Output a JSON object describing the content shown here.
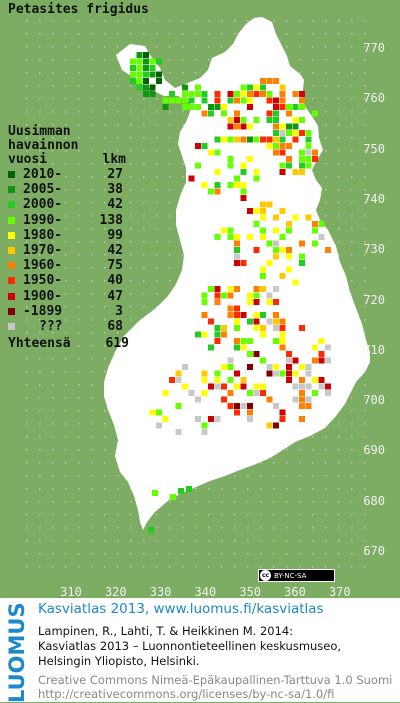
{
  "species": "Petasites frigidus",
  "legend": {
    "header_line1": "Uusimman",
    "header_line2": "havainnon",
    "header_col1": "vuosi",
    "header_col2": "lkm",
    "rows": [
      {
        "label": "2010-",
        "count": "27",
        "color": "#006400"
      },
      {
        "label": "2005-",
        "count": "38",
        "color": "#119611"
      },
      {
        "label": "2000-",
        "count": "42",
        "color": "#22cc22"
      },
      {
        "label": "1990-",
        "count": "138",
        "color": "#66ff00"
      },
      {
        "label": "1980-",
        "count": "99",
        "color": "#ffff00"
      },
      {
        "label": "1970-",
        "count": "42",
        "color": "#ffc800"
      },
      {
        "label": "1960-",
        "count": "75",
        "color": "#ff7f00"
      },
      {
        "label": "1950-",
        "count": "40",
        "color": "#ff2a00"
      },
      {
        "label": "1900-",
        "count": "47",
        "color": "#cc0000"
      },
      {
        "label": "-1899",
        "count": "3",
        "color": "#800000"
      },
      {
        "label": "???",
        "count": "68",
        "color": "#c8c8c8"
      }
    ],
    "total_label": "Yhteensä",
    "total_count": "619"
  },
  "axis": {
    "y_ticks": [
      "770",
      "760",
      "750",
      "740",
      "730",
      "720",
      "710",
      "700",
      "690",
      "680",
      "670"
    ],
    "x_ticks": [
      "310",
      "320",
      "330",
      "340",
      "350",
      "360",
      "370"
    ]
  },
  "license_badge": "BY-NC-SA",
  "footer": {
    "brand": "LUOMUS",
    "headline": "Kasviatlas 2013, www.luomus.fi/kasviatlas",
    "citation_line1": "Lampinen, R., Lahti, T. & Heikkinen M. 2014:",
    "citation_line2": "Kasviatlas 2013 – Luonnontieteellinen keskusmuseo,",
    "citation_line3": "Helsingin Yliopisto, Helsinki.",
    "license_line1": "Creative Commons Nimeä-Epäkaupallinen-Tarttuva 1.0 Suomi",
    "license_line2": "http://creativecommons.org/licenses/by-nc-sa/1.0/fi"
  },
  "colors": {
    "background": "#7dac63",
    "land": "#ffffff",
    "grid_dots": "#c4c4c4",
    "brand": "#1e88c8"
  }
}
